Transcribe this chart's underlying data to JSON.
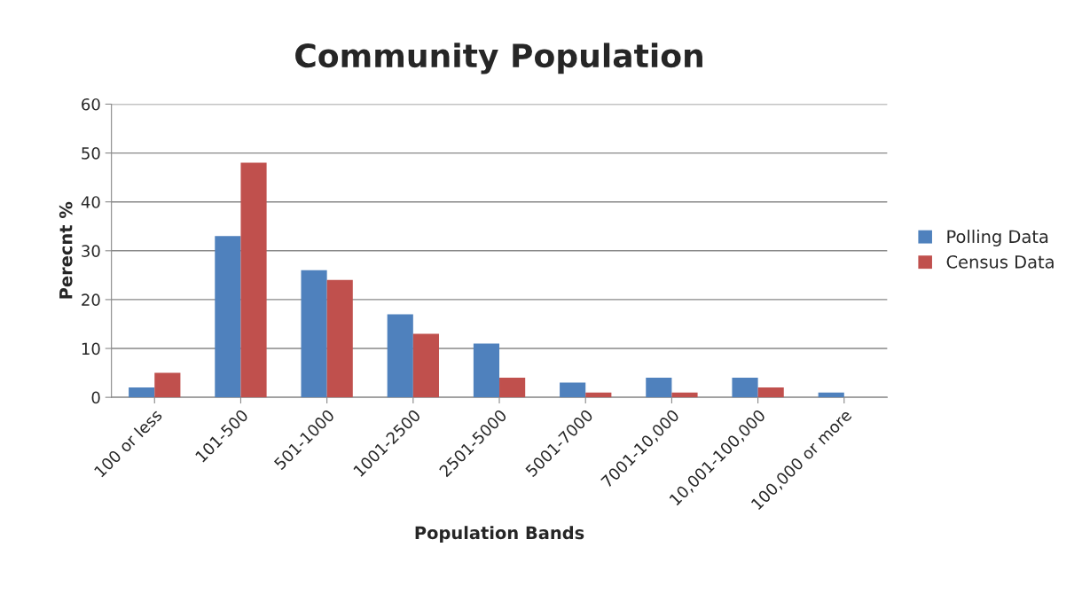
{
  "chart_data": {
    "type": "bar",
    "title": "Community Population",
    "xlabel": "Population Bands",
    "ylabel": "Perecnt %",
    "categories": [
      "100 or less",
      "101-500",
      "501-1000",
      "1001-2500",
      "2501-5000",
      "5001-7000",
      "7001-10,000",
      "10,001-100,000",
      "100,000 or more"
    ],
    "series": [
      {
        "name": "Polling Data",
        "color": "#4f81bd",
        "values": [
          2,
          33,
          26,
          17,
          11,
          3,
          4,
          4,
          1
        ]
      },
      {
        "name": "Census Data",
        "color": "#c0504d",
        "values": [
          5,
          48,
          24,
          13,
          4,
          1,
          1,
          2,
          null
        ]
      }
    ],
    "ylim": [
      0,
      60
    ],
    "yticks": [
      0,
      10,
      20,
      30,
      40,
      50,
      60
    ],
    "grid": "y",
    "legend": "right"
  }
}
